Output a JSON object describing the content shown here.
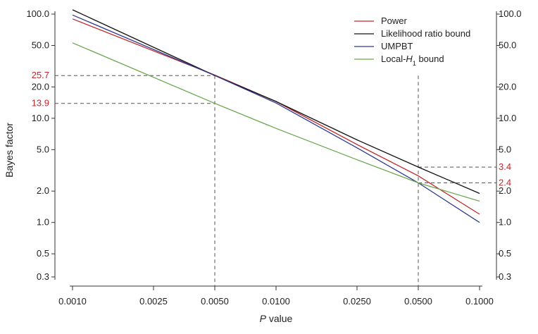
{
  "chart_data": {
    "type": "line",
    "xlabel_italic": "P",
    "xlabel_rest": " value",
    "ylabel": "Bayes factor",
    "x_scale": "log",
    "y_scale": "log",
    "xlim": [
      0.001,
      0.1
    ],
    "ylim": [
      0.3,
      100
    ],
    "x_ticks": [
      0.001,
      0.0025,
      0.005,
      0.01,
      0.025,
      0.05,
      0.1
    ],
    "x_tick_labels": [
      "0.0010",
      "0.0025",
      "0.0050",
      "0.0100",
      "0.0250",
      "0.0500",
      "0.1000"
    ],
    "y_ticks": [
      100,
      50,
      20,
      10,
      5,
      2,
      1,
      0.5,
      0.3
    ],
    "y_tick_labels": [
      "100.0",
      "50.0",
      "20.0",
      "10.0",
      "5.0",
      "2.0",
      "1.0",
      "0.5",
      "0.3"
    ],
    "series": [
      {
        "name": "Power",
        "color": "#c0282d",
        "x": [
          0.001,
          0.005,
          0.01,
          0.025,
          0.05,
          0.1
        ],
        "y": [
          90,
          26,
          14.5,
          5.6,
          2.8,
          1.2
        ]
      },
      {
        "name": "Likelihood ratio bound",
        "color": "#111111",
        "x": [
          0.001,
          0.005,
          0.01,
          0.025,
          0.05,
          0.1
        ],
        "y": [
          110,
          25.7,
          14.5,
          6.2,
          3.4,
          1.9
        ]
      },
      {
        "name": "UMPBT",
        "color": "#2e3a8c",
        "x": [
          0.001,
          0.005,
          0.01,
          0.025,
          0.05,
          0.1
        ],
        "y": [
          98,
          25.7,
          14.0,
          5.2,
          2.4,
          1.0
        ]
      },
      {
        "name_main": "Local-",
        "name_italic": "H",
        "name_sub": "1",
        "name_tail": " bound",
        "color": "#6aa84f",
        "x": [
          0.001,
          0.005,
          0.01,
          0.025,
          0.05,
          0.1
        ],
        "y": [
          53,
          13.9,
          8.0,
          4.0,
          2.4,
          1.6
        ]
      }
    ],
    "ref_lines": [
      {
        "label": "25.7",
        "y": 25.7,
        "side": "left",
        "x_end": 0.005
      },
      {
        "label": "13.9",
        "y": 13.9,
        "side": "left",
        "x_end": 0.005
      },
      {
        "label": "3.4",
        "y": 3.4,
        "side": "right",
        "x_start": 0.05
      },
      {
        "label": "2.4",
        "y": 2.4,
        "side": "right",
        "x_start": 0.05
      }
    ],
    "vertical_refs": [
      0.005,
      0.05
    ],
    "ref_label_color": "#c0282d",
    "legend_position": "top-right",
    "grid": false
  }
}
